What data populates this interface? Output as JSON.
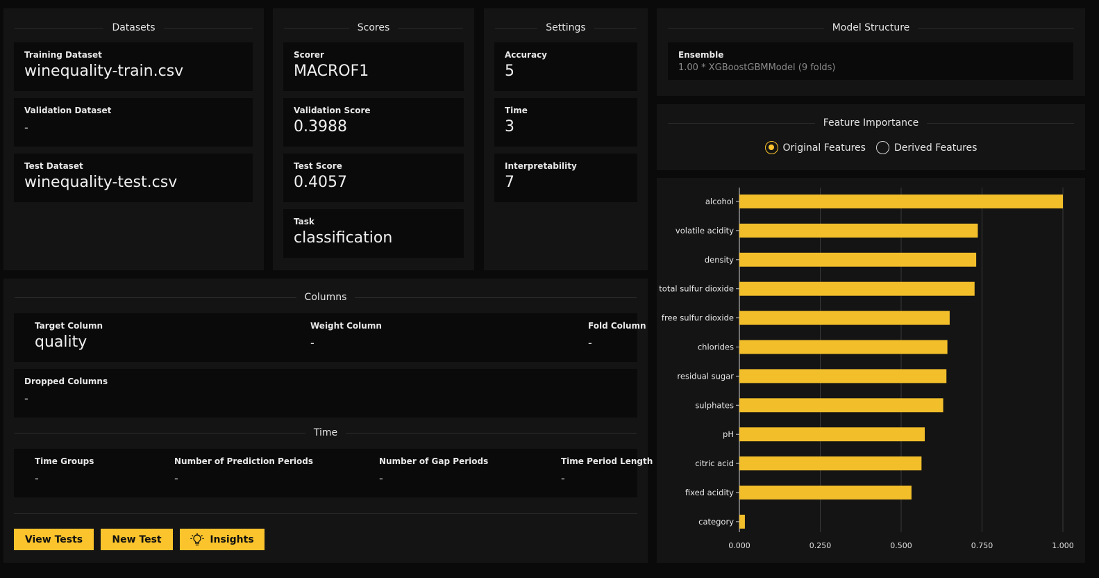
{
  "datasets": {
    "title": "Datasets",
    "training": {
      "label": "Training Dataset",
      "value": "winequality-train.csv"
    },
    "validation": {
      "label": "Validation Dataset",
      "value": "-"
    },
    "test": {
      "label": "Test Dataset",
      "value": "winequality-test.csv"
    }
  },
  "scores": {
    "title": "Scores",
    "scorer": {
      "label": "Scorer",
      "value": "MACROF1"
    },
    "validation": {
      "label": "Validation Score",
      "value": "0.3988"
    },
    "test": {
      "label": "Test Score",
      "value": "0.4057"
    },
    "task": {
      "label": "Task",
      "value": "classification"
    }
  },
  "settings": {
    "title": "Settings",
    "accuracy": {
      "label": "Accuracy",
      "value": "5"
    },
    "time": {
      "label": "Time",
      "value": "3"
    },
    "interpretability": {
      "label": "Interpretability",
      "value": "7"
    }
  },
  "columns": {
    "title": "Columns",
    "target": {
      "label": "Target Column",
      "value": "quality"
    },
    "weight": {
      "label": "Weight Column",
      "value": "-"
    },
    "fold": {
      "label": "Fold Column",
      "value": "-"
    },
    "dropped": {
      "label": "Dropped Columns",
      "value": "-"
    }
  },
  "time": {
    "title": "Time",
    "groups": {
      "label": "Time Groups",
      "value": "-"
    },
    "prediction_periods": {
      "label": "Number of Prediction Periods",
      "value": "-"
    },
    "gap_periods": {
      "label": "Number of Gap Periods",
      "value": "-"
    },
    "period_length": {
      "label": "Time Period Length",
      "value": "-"
    }
  },
  "actions": {
    "view_tests": "View Tests",
    "new_test": "New Test",
    "insights": "Insights",
    "insights_icon": "lightbulb-icon"
  },
  "model_structure": {
    "title": "Model Structure",
    "ensemble_label": "Ensemble",
    "ensemble_value": "1.00 * XGBoostGBMModel (9 folds)"
  },
  "feature_importance": {
    "title": "Feature Importance",
    "options": [
      {
        "label": "Original Features",
        "selected": true
      },
      {
        "label": "Derived Features",
        "selected": false
      }
    ]
  },
  "colors": {
    "accent": "#fbc42c",
    "bar": "#f2bf2b",
    "background": "#0a0a0a",
    "panel": "#141414"
  },
  "chart_data": {
    "type": "bar",
    "orientation": "horizontal",
    "categories": [
      "alcohol",
      "volatile acidity",
      "density",
      "total sulfur dioxide",
      "free sulfur dioxide",
      "chlorides",
      "residual sugar",
      "sulphates",
      "pH",
      "citric acid",
      "fixed acidity",
      "category"
    ],
    "values": [
      1.0,
      0.737,
      0.732,
      0.727,
      0.65,
      0.643,
      0.64,
      0.63,
      0.573,
      0.563,
      0.532,
      0.017
    ],
    "xlim": [
      0,
      1.0
    ],
    "xticks": [
      "0.000",
      "0.250",
      "0.500",
      "0.750",
      "1.000"
    ],
    "grid": true
  }
}
